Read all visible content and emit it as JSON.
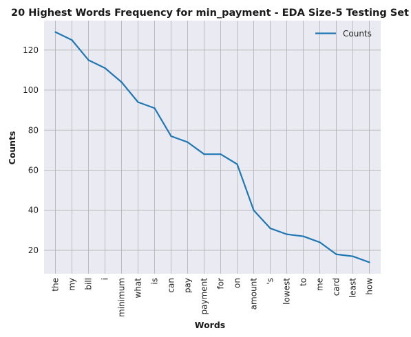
{
  "chart_data": {
    "type": "line",
    "title": "20 Highest Words Frequency for min_payment - EDA Size-5 Testing Set",
    "xlabel": "Words",
    "ylabel": "Counts",
    "categories": [
      "the",
      "my",
      "bill",
      "i",
      "minimum",
      "what",
      "is",
      "can",
      "pay",
      "payment",
      "for",
      "on",
      "amount",
      "'s",
      "lowest",
      "to",
      "me",
      "card",
      "least",
      "how"
    ],
    "series": [
      {
        "name": "Counts",
        "values": [
          129,
          125,
          115,
          111,
          104,
          94,
          91,
          77,
          74,
          68,
          68,
          63,
          40,
          31,
          28,
          27,
          24,
          18,
          17,
          14
        ]
      }
    ],
    "yticks": [
      20,
      40,
      60,
      80,
      100,
      120
    ],
    "ylim": [
      8.3,
      134.7
    ],
    "grid": true,
    "legend_position": "top-right",
    "colors": {
      "line": "#1f77b4",
      "plot_bg": "#eaeaf2",
      "grid": "#b0b0b0"
    }
  }
}
